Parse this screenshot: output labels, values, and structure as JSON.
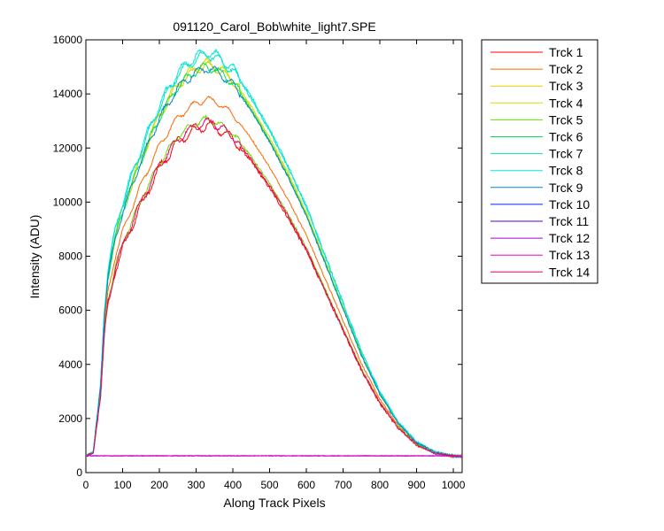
{
  "chart_data": {
    "type": "line",
    "title": "091120_Carol_Bob\\white_light7.SPE",
    "xlabel": "Along Track Pixels",
    "ylabel": "Intensity (ADU)",
    "xlim": [
      0,
      1024
    ],
    "ylim": [
      0,
      16000
    ],
    "xticks": [
      "0",
      "100",
      "200",
      "300",
      "400",
      "500",
      "600",
      "700",
      "800",
      "900",
      "1000"
    ],
    "yticks": [
      "0",
      "2000",
      "4000",
      "6000",
      "8000",
      "10000",
      "12000",
      "14000",
      "16000"
    ],
    "grid": false,
    "legend_position": "outside-right",
    "series": [
      {
        "name": "Trck 1",
        "color": "#ff0000",
        "peak": 12850,
        "noise": 300
      },
      {
        "name": "Trck 2",
        "color": "#ff6600",
        "peak": 13800,
        "noise": 180
      },
      {
        "name": "Trck 3",
        "color": "#e6cc00",
        "peak": 15050,
        "noise": 250
      },
      {
        "name": "Trck 4",
        "color": "#ccdd00",
        "peak": 15150,
        "noise": 250
      },
      {
        "name": "Trck 5",
        "color": "#66dd00",
        "peak": 13050,
        "noise": 220
      },
      {
        "name": "Trck 6",
        "color": "#00e64d",
        "peak": 15000,
        "noise": 260
      },
      {
        "name": "Trck 7",
        "color": "#00e6b3",
        "peak": 15450,
        "noise": 280
      },
      {
        "name": "Trck 8",
        "color": "#00e6e6",
        "peak": 15550,
        "noise": 300
      },
      {
        "name": "Trck 9",
        "color": "#0088cc",
        "peak": 14950,
        "noise": 250
      },
      {
        "name": "Trck 10",
        "color": "#0022ff",
        "peak": 620,
        "noise": 12
      },
      {
        "name": "Trck 11",
        "color": "#5500cc",
        "peak": 620,
        "noise": 12
      },
      {
        "name": "Trck 12",
        "color": "#aa00dd",
        "peak": 625,
        "noise": 12
      },
      {
        "name": "Trck 13",
        "color": "#ee00cc",
        "peak": 620,
        "noise": 12
      },
      {
        "name": "Trck 14",
        "color": "#ee0066",
        "peak": 12950,
        "noise": 260
      }
    ],
    "baseline": 600,
    "active_profile_x": [
      0,
      20,
      40,
      50,
      60,
      80,
      100,
      150,
      200,
      250,
      300,
      330,
      350,
      400,
      450,
      500,
      550,
      600,
      650,
      700,
      750,
      800,
      850,
      900,
      950,
      980,
      1000,
      1024
    ],
    "active_profile_fraction": [
      0,
      0.01,
      0.18,
      0.36,
      0.46,
      0.56,
      0.63,
      0.76,
      0.87,
      0.95,
      0.99,
      1.0,
      0.995,
      0.96,
      0.89,
      0.81,
      0.72,
      0.62,
      0.5,
      0.38,
      0.26,
      0.16,
      0.085,
      0.035,
      0.01,
      0.004,
      0.001,
      0
    ]
  }
}
